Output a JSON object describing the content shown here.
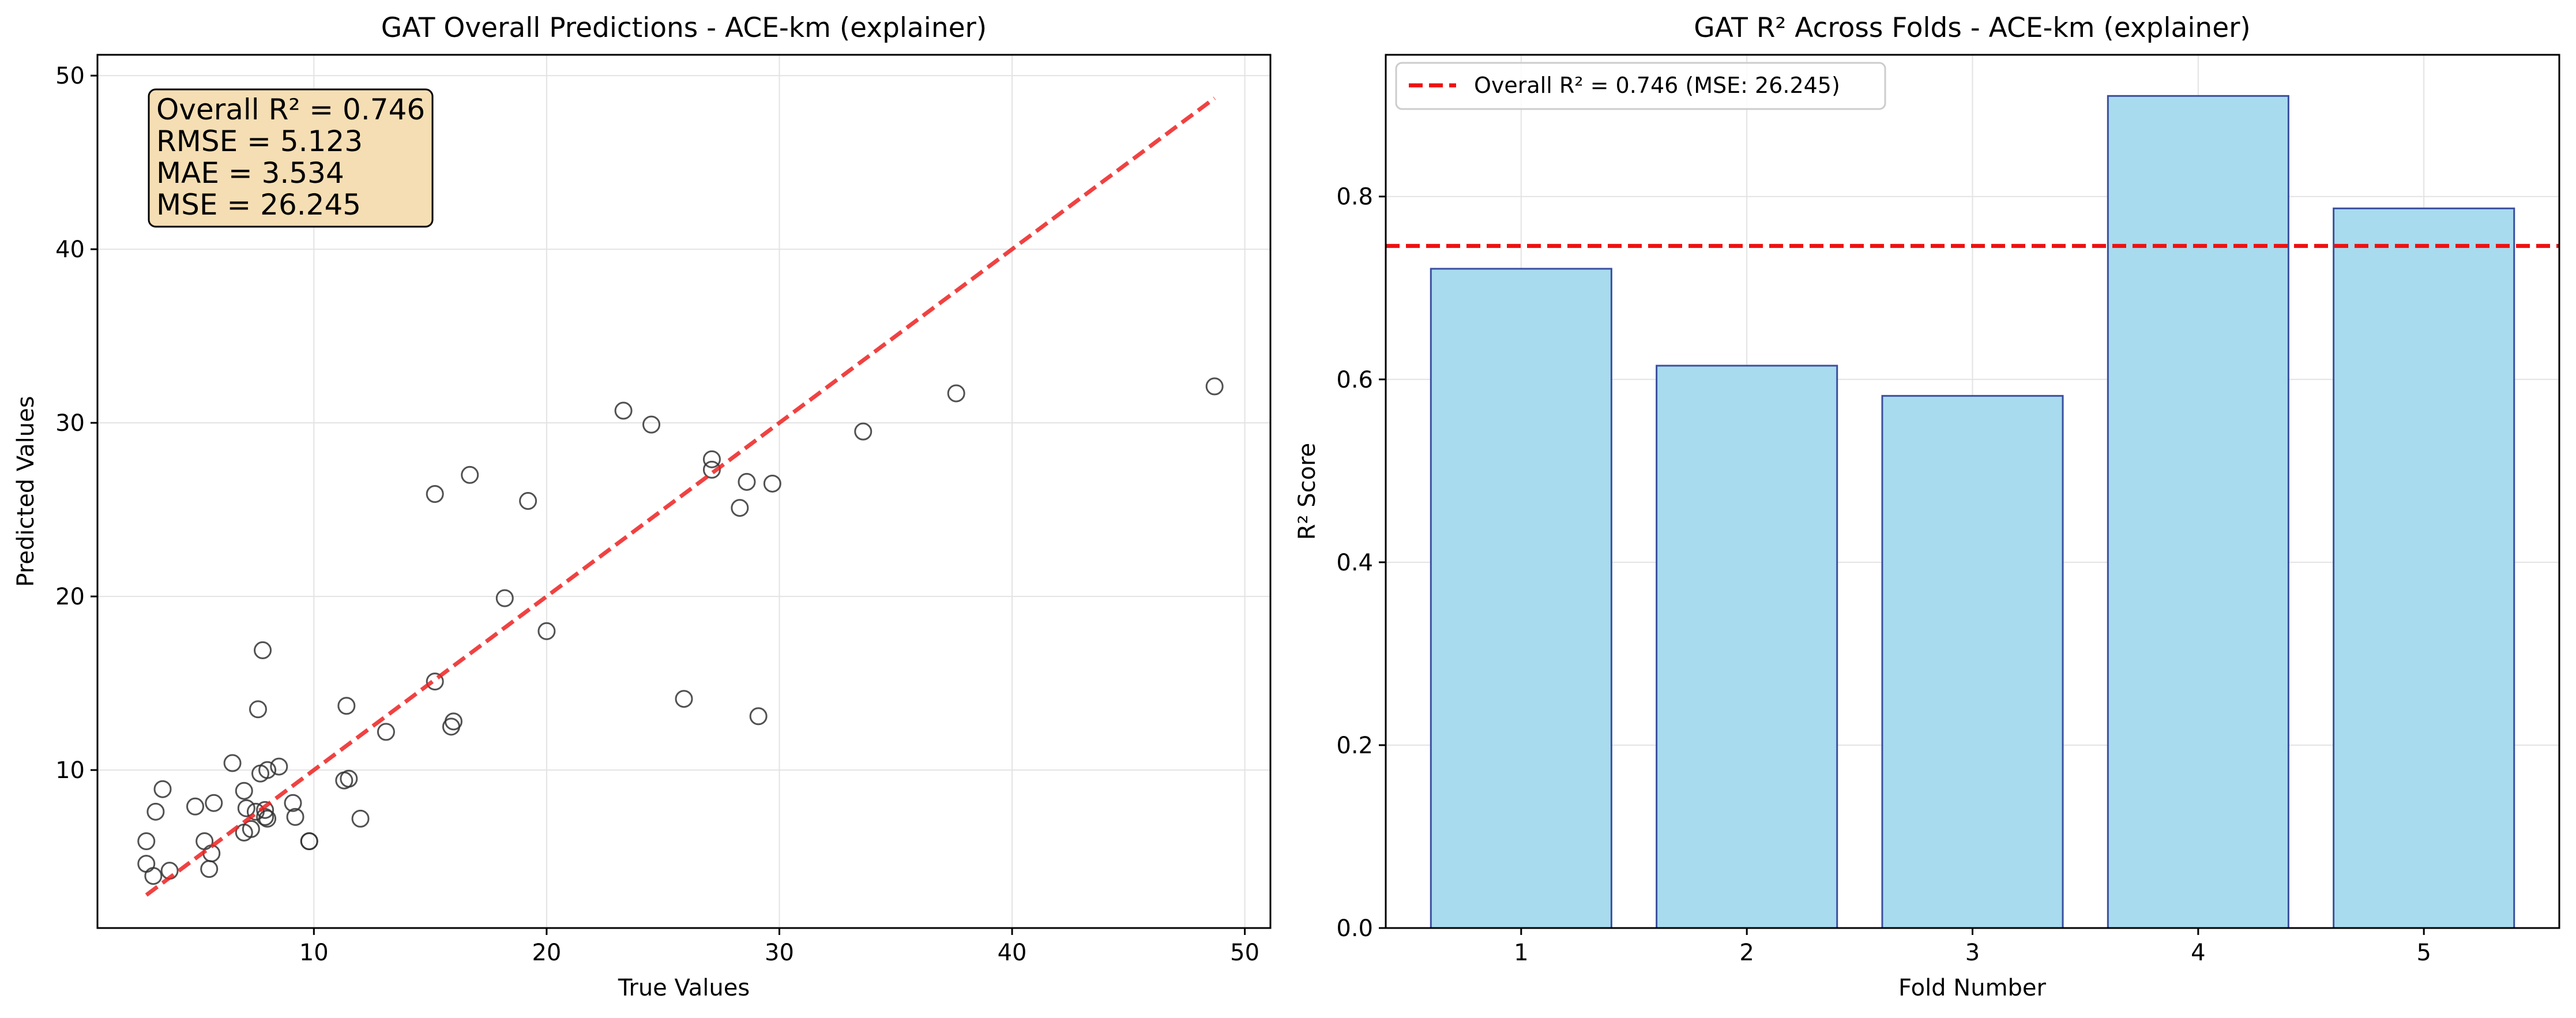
{
  "chart_data": [
    {
      "type": "scatter",
      "title": "GAT Overall Predictions - ACE-km (explainer)",
      "xlabel": "True Values",
      "ylabel": "Predicted Values",
      "xlim": [
        0.7,
        51.1
      ],
      "ylim": [
        0.9,
        51.2
      ],
      "xticks": [
        10,
        20,
        30,
        40,
        50
      ],
      "yticks": [
        10,
        20,
        30,
        40,
        50
      ],
      "grid": true,
      "points": [
        [
          2.8,
          5.9
        ],
        [
          2.8,
          4.6
        ],
        [
          3.1,
          3.9
        ],
        [
          3.2,
          7.6
        ],
        [
          3.5,
          8.9
        ],
        [
          3.8,
          4.2
        ],
        [
          4.9,
          7.9
        ],
        [
          5.3,
          5.9
        ],
        [
          5.5,
          4.3
        ],
        [
          5.6,
          5.2
        ],
        [
          5.7,
          8.1
        ],
        [
          6.5,
          10.4
        ],
        [
          7.0,
          8.8
        ],
        [
          7.0,
          6.4
        ],
        [
          7.1,
          7.8
        ],
        [
          7.3,
          6.6
        ],
        [
          7.5,
          7.6
        ],
        [
          7.6,
          13.5
        ],
        [
          7.7,
          9.8
        ],
        [
          7.8,
          16.9
        ],
        [
          7.9,
          7.7
        ],
        [
          7.9,
          7.3
        ],
        [
          8.0,
          7.2
        ],
        [
          8.0,
          10.0
        ],
        [
          8.5,
          10.2
        ],
        [
          9.1,
          8.1
        ],
        [
          9.2,
          7.3
        ],
        [
          9.8,
          5.9
        ],
        [
          9.8,
          5.9
        ],
        [
          11.3,
          9.4
        ],
        [
          11.4,
          13.7
        ],
        [
          11.5,
          9.5
        ],
        [
          12.0,
          7.2
        ],
        [
          13.1,
          12.2
        ],
        [
          15.2,
          25.9
        ],
        [
          15.2,
          15.1
        ],
        [
          15.9,
          12.5
        ],
        [
          16.0,
          12.8
        ],
        [
          16.7,
          27.0
        ],
        [
          18.2,
          19.9
        ],
        [
          19.2,
          25.5
        ],
        [
          20.0,
          18.0
        ],
        [
          23.3,
          30.7
        ],
        [
          24.5,
          29.9
        ],
        [
          25.9,
          14.1
        ],
        [
          27.1,
          27.9
        ],
        [
          27.1,
          27.3
        ],
        [
          28.3,
          25.1
        ],
        [
          28.6,
          26.6
        ],
        [
          29.1,
          13.1
        ],
        [
          29.7,
          26.5
        ],
        [
          33.6,
          29.5
        ],
        [
          37.6,
          31.7
        ],
        [
          48.7,
          32.1
        ]
      ],
      "fit_line": {
        "x": [
          2.8,
          48.7
        ],
        "y": [
          2.8,
          48.7
        ],
        "color": "#ee2222",
        "style": "dashed"
      },
      "annotation": [
        "Overall R² = 0.746",
        "RMSE = 5.123",
        "MAE = 3.534",
        "MSE = 26.245"
      ],
      "annotation_box_color": "#f5deb3",
      "marker": {
        "shape": "circle",
        "fill": "none",
        "edge": "#333333"
      }
    },
    {
      "type": "bar",
      "title": "GAT R² Across Folds - ACE-km (explainer)",
      "xlabel": "Fold Number",
      "ylabel": "R² Score",
      "categories": [
        "1",
        "2",
        "3",
        "4",
        "5"
      ],
      "values": [
        0.721,
        0.615,
        0.582,
        0.91,
        0.787
      ],
      "ylim": [
        0,
        0.955
      ],
      "yticks": [
        0.0,
        0.2,
        0.4,
        0.6,
        0.8
      ],
      "ytick_labels": [
        "0.0",
        "0.2",
        "0.4",
        "0.6",
        "0.8"
      ],
      "grid": true,
      "bar_color": "#a8dbee",
      "bar_edge_color": "#3a4fa0",
      "reference_line": {
        "value": 0.746,
        "label": "Overall R² = 0.746 (MSE: 26.245)",
        "color": "#ee1111",
        "style": "dashed"
      },
      "legend_position": "top-left"
    }
  ]
}
